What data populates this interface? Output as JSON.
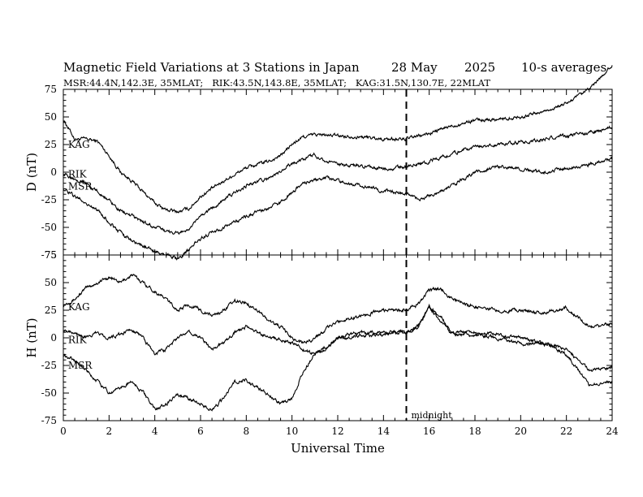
{
  "chart_data": {
    "type": "line",
    "title": "Magnetic Field Variations at 3 Stations in Japan",
    "date": "28 May",
    "year": "2025",
    "averaging": "10-s averages",
    "subtitle": "MSR:44.4N,142.3E, 35MLAT;   RIK:43.5N,143.8E, 35MLAT;   KAG:31.5N,130.7E, 22MLAT",
    "xlabel": "Universal Time",
    "xlim": [
      0,
      24
    ],
    "xticks": [
      "0",
      "2",
      "4",
      "6",
      "8",
      "10",
      "12",
      "14",
      "16",
      "18",
      "20",
      "22",
      "24"
    ],
    "midnight": {
      "x": 15,
      "label": "midnight"
    },
    "panels": [
      {
        "ylabel": "D (nT)",
        "ylim": [
          -75,
          75
        ],
        "yticks": [
          "75",
          "50",
          "25",
          "0",
          "-25",
          "-50",
          "-75"
        ],
        "series": [
          {
            "name": "KAG",
            "label_at": [
              0.1,
              25
            ],
            "points": [
              [
                0,
                48
              ],
              [
                0.5,
                30
              ],
              [
                1,
                30
              ],
              [
                1.5,
                28
              ],
              [
                2,
                15
              ],
              [
                2.5,
                0
              ],
              [
                3,
                -8
              ],
              [
                3.5,
                -18
              ],
              [
                4,
                -28
              ],
              [
                4.5,
                -34
              ],
              [
                5,
                -36
              ],
              [
                5.5,
                -33
              ],
              [
                6,
                -22
              ],
              [
                7,
                -8
              ],
              [
                8,
                4
              ],
              [
                9,
                10
              ],
              [
                9.5,
                15
              ],
              [
                10,
                25
              ],
              [
                10.5,
                32
              ],
              [
                11,
                34
              ],
              [
                12,
                33
              ],
              [
                13,
                32
              ],
              [
                14,
                30
              ],
              [
                15,
                30
              ],
              [
                16,
                35
              ],
              [
                17,
                42
              ],
              [
                18,
                47
              ],
              [
                19,
                48
              ],
              [
                20,
                50
              ],
              [
                21,
                55
              ],
              [
                22,
                62
              ],
              [
                23,
                75
              ],
              [
                24,
                97
              ]
            ]
          },
          {
            "name": "RIK",
            "label_at": [
              0.1,
              -2
            ],
            "points": [
              [
                0,
                -2
              ],
              [
                0.5,
                -5
              ],
              [
                1,
                -10
              ],
              [
                1.5,
                -18
              ],
              [
                2,
                -25
              ],
              [
                2.5,
                -35
              ],
              [
                3,
                -40
              ],
              [
                3.5,
                -45
              ],
              [
                4,
                -50
              ],
              [
                4.5,
                -53
              ],
              [
                5,
                -55
              ],
              [
                5.5,
                -52
              ],
              [
                6,
                -40
              ],
              [
                7,
                -25
              ],
              [
                8,
                -12
              ],
              [
                9,
                -5
              ],
              [
                9.5,
                0
              ],
              [
                10,
                8
              ],
              [
                10.5,
                12
              ],
              [
                11,
                16
              ],
              [
                11.5,
                10
              ],
              [
                12,
                7
              ],
              [
                13,
                5
              ],
              [
                14,
                3
              ],
              [
                15,
                5
              ],
              [
                16,
                10
              ],
              [
                17,
                17
              ],
              [
                18,
                23
              ],
              [
                19,
                25
              ],
              [
                20,
                27
              ],
              [
                21,
                30
              ],
              [
                22,
                33
              ],
              [
                23,
                36
              ],
              [
                24,
                40
              ]
            ]
          },
          {
            "name": "MSR",
            "label_at": [
              0.1,
              -13
            ],
            "points": [
              [
                0,
                -15
              ],
              [
                0.5,
                -22
              ],
              [
                1,
                -28
              ],
              [
                1.5,
                -35
              ],
              [
                2,
                -45
              ],
              [
                2.5,
                -55
              ],
              [
                3,
                -62
              ],
              [
                3.5,
                -67
              ],
              [
                4,
                -72
              ],
              [
                4.5,
                -75
              ],
              [
                5,
                -78
              ],
              [
                5.5,
                -70
              ],
              [
                6,
                -60
              ],
              [
                6.5,
                -55
              ],
              [
                7,
                -50
              ],
              [
                8,
                -40
              ],
              [
                9,
                -32
              ],
              [
                9.5,
                -28
              ],
              [
                10,
                -18
              ],
              [
                10.5,
                -10
              ],
              [
                11,
                -7
              ],
              [
                11.5,
                -5
              ],
              [
                12,
                -7
              ],
              [
                13,
                -12
              ],
              [
                14,
                -17
              ],
              [
                15,
                -20
              ],
              [
                15.5,
                -25
              ],
              [
                16,
                -22
              ],
              [
                17,
                -12
              ],
              [
                18,
                0
              ],
              [
                19,
                5
              ],
              [
                20,
                3
              ],
              [
                21,
                0
              ],
              [
                22,
                3
              ],
              [
                23,
                7
              ],
              [
                24,
                12
              ]
            ]
          }
        ]
      },
      {
        "ylabel": "H (nT)",
        "ylim": [
          -75,
          75
        ],
        "yticks": [
          "75",
          "50",
          "25",
          "0",
          "-25",
          "-50",
          "-75"
        ],
        "series": [
          {
            "name": "KAG",
            "label_at": [
              0.1,
              28
            ],
            "points": [
              [
                0,
                30
              ],
              [
                0.5,
                35
              ],
              [
                1,
                45
              ],
              [
                1.5,
                50
              ],
              [
                2,
                55
              ],
              [
                2.5,
                50
              ],
              [
                3,
                57
              ],
              [
                3.5,
                50
              ],
              [
                4,
                42
              ],
              [
                4.5,
                35
              ],
              [
                5,
                25
              ],
              [
                5.5,
                30
              ],
              [
                6,
                25
              ],
              [
                6.5,
                20
              ],
              [
                7,
                25
              ],
              [
                7.5,
                33
              ],
              [
                8,
                32
              ],
              [
                8.5,
                25
              ],
              [
                9,
                15
              ],
              [
                9.5,
                10
              ],
              [
                10,
                0
              ],
              [
                10.5,
                -5
              ],
              [
                11,
                0
              ],
              [
                11.5,
                8
              ],
              [
                12,
                15
              ],
              [
                13,
                20
              ],
              [
                14,
                25
              ],
              [
                15,
                25
              ],
              [
                15.5,
                30
              ],
              [
                16,
                43
              ],
              [
                16.5,
                45
              ],
              [
                17,
                35
              ],
              [
                18,
                28
              ],
              [
                19,
                25
              ],
              [
                20,
                25
              ],
              [
                21,
                22
              ],
              [
                22,
                27
              ],
              [
                23,
                10
              ],
              [
                24,
                12
              ]
            ]
          },
          {
            "name": "RIK",
            "label_at": [
              0.1,
              -2
            ],
            "points": [
              [
                0,
                8
              ],
              [
                0.5,
                5
              ],
              [
                1,
                0
              ],
              [
                1.5,
                5
              ],
              [
                2,
                0
              ],
              [
                2.5,
                3
              ],
              [
                3,
                8
              ],
              [
                3.5,
                0
              ],
              [
                4,
                -15
              ],
              [
                4.5,
                -10
              ],
              [
                5,
                0
              ],
              [
                5.5,
                5
              ],
              [
                6,
                0
              ],
              [
                6.5,
                -10
              ],
              [
                7,
                -5
              ],
              [
                7.5,
                5
              ],
              [
                8,
                10
              ],
              [
                8.5,
                5
              ],
              [
                9,
                0
              ],
              [
                9.5,
                -2
              ],
              [
                10,
                -5
              ],
              [
                10.5,
                -10
              ],
              [
                11,
                -15
              ],
              [
                11.5,
                -8
              ],
              [
                12,
                0
              ],
              [
                13,
                5
              ],
              [
                14,
                5
              ],
              [
                15,
                5
              ],
              [
                15.5,
                10
              ],
              [
                16,
                28
              ],
              [
                16.5,
                20
              ],
              [
                17,
                5
              ],
              [
                18,
                5
              ],
              [
                19,
                3
              ],
              [
                20,
                0
              ],
              [
                21,
                -5
              ],
              [
                22,
                -10
              ],
              [
                23,
                -30
              ],
              [
                24,
                -27
              ]
            ]
          },
          {
            "name": "MSR",
            "label_at": [
              0.1,
              -25
            ],
            "points": [
              [
                0,
                -15
              ],
              [
                0.5,
                -20
              ],
              [
                1,
                -30
              ],
              [
                1.5,
                -40
              ],
              [
                2,
                -50
              ],
              [
                2.5,
                -45
              ],
              [
                3,
                -40
              ],
              [
                3.5,
                -50
              ],
              [
                4,
                -65
              ],
              [
                4.5,
                -60
              ],
              [
                5,
                -52
              ],
              [
                5.5,
                -55
              ],
              [
                6,
                -60
              ],
              [
                6.5,
                -65
              ],
              [
                7,
                -55
              ],
              [
                7.5,
                -40
              ],
              [
                8,
                -38
              ],
              [
                8.5,
                -45
              ],
              [
                9,
                -52
              ],
              [
                9.5,
                -60
              ],
              [
                10,
                -55
              ],
              [
                10.5,
                -30
              ],
              [
                11,
                -15
              ],
              [
                11.5,
                -10
              ],
              [
                12,
                0
              ],
              [
                13,
                2
              ],
              [
                14,
                3
              ],
              [
                15,
                5
              ],
              [
                15.5,
                10
              ],
              [
                16,
                28
              ],
              [
                16.5,
                15
              ],
              [
                17,
                3
              ],
              [
                18,
                3
              ],
              [
                19,
                0
              ],
              [
                20,
                -5
              ],
              [
                21,
                -5
              ],
              [
                22,
                -15
              ],
              [
                23,
                -43
              ],
              [
                24,
                -40
              ]
            ]
          }
        ]
      }
    ]
  }
}
